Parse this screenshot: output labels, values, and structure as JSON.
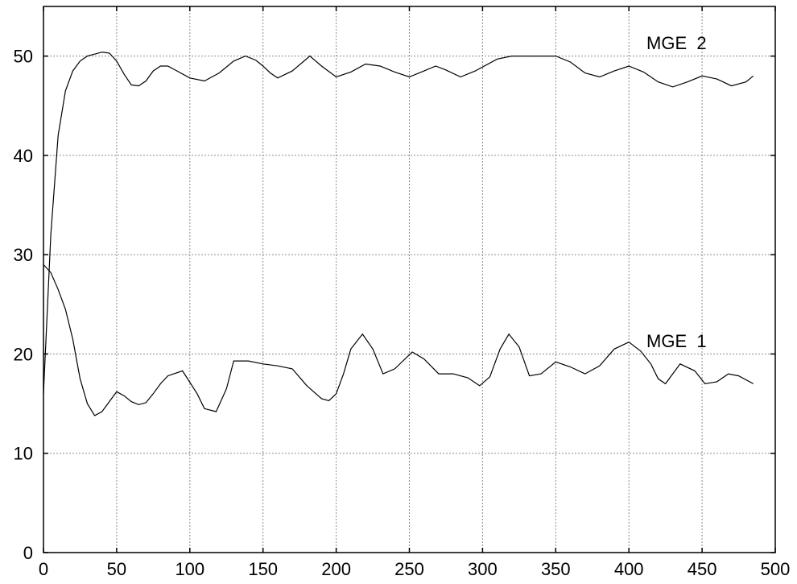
{
  "chart_data": {
    "type": "line",
    "title": "",
    "xlabel": "",
    "ylabel": "",
    "xlim": [
      0,
      500
    ],
    "ylim": [
      0,
      55
    ],
    "x_ticks": [
      "0",
      "50",
      "100",
      "150",
      "200",
      "250",
      "300",
      "350",
      "400",
      "450",
      "500"
    ],
    "y_ticks": [
      "0",
      "10",
      "20",
      "30",
      "40",
      "50"
    ],
    "grid": true,
    "legend": "none (inline series labels)",
    "series": [
      {
        "name": "MGE  2",
        "x": [
          0,
          5,
          10,
          15,
          20,
          25,
          30,
          35,
          40,
          45,
          50,
          55,
          60,
          65,
          70,
          75,
          80,
          85,
          90,
          100,
          110,
          120,
          130,
          138,
          145,
          150,
          155,
          160,
          170,
          182,
          190,
          200,
          210,
          220,
          230,
          240,
          250,
          260,
          268,
          275,
          285,
          295,
          310,
          320,
          330,
          340,
          350,
          360,
          370,
          380,
          390,
          400,
          410,
          420,
          430,
          440,
          450,
          460,
          470,
          480,
          485
        ],
        "values": [
          16,
          32,
          42,
          46.5,
          48.5,
          49.5,
          50,
          50.2,
          50.4,
          50.3,
          49.5,
          48.2,
          47.1,
          47,
          47.5,
          48.5,
          49,
          49,
          48.6,
          47.8,
          47.5,
          48.3,
          49.5,
          50,
          49.6,
          49,
          48.3,
          47.8,
          48.5,
          50,
          49,
          47.9,
          48.4,
          49.2,
          49,
          48.4,
          47.9,
          48.5,
          49,
          48.6,
          47.9,
          48.5,
          49.7,
          50,
          50,
          50,
          50,
          49.4,
          48.3,
          47.9,
          48.5,
          49,
          48.4,
          47.4,
          46.9,
          47.4,
          48,
          47.7,
          47,
          47.4,
          48
        ]
      },
      {
        "name": "MGE  1",
        "x": [
          0,
          5,
          10,
          15,
          20,
          25,
          30,
          35,
          40,
          45,
          50,
          55,
          60,
          65,
          70,
          75,
          80,
          85,
          95,
          105,
          110,
          118,
          125,
          130,
          140,
          150,
          160,
          170,
          180,
          190,
          195,
          200,
          205,
          210,
          218,
          225,
          232,
          240,
          252,
          260,
          270,
          280,
          290,
          298,
          305,
          312,
          318,
          325,
          332,
          340,
          350,
          360,
          370,
          380,
          390,
          400,
          408,
          415,
          420,
          425,
          435,
          445,
          452,
          460,
          468,
          475,
          485
        ],
        "values": [
          29,
          28.2,
          26.5,
          24.5,
          21.5,
          17.5,
          15,
          13.8,
          14.2,
          15.2,
          16.2,
          15.8,
          15.2,
          14.9,
          15.1,
          16,
          17,
          17.8,
          18.3,
          16,
          14.5,
          14.2,
          16.5,
          19.3,
          19.3,
          19,
          18.8,
          18.5,
          16.8,
          15.5,
          15.3,
          16,
          18,
          20.5,
          22,
          20.5,
          18,
          18.5,
          20.2,
          19.5,
          18,
          18,
          17.6,
          16.8,
          17.7,
          20.5,
          22,
          20.7,
          17.8,
          18,
          19.2,
          18.7,
          18,
          18.8,
          20.5,
          21.2,
          20.3,
          19,
          17.5,
          17,
          19,
          18.3,
          17,
          17.2,
          18,
          17.8,
          17
        ]
      }
    ],
    "annotations": [
      "MGE  2",
      "MGE  1"
    ]
  }
}
